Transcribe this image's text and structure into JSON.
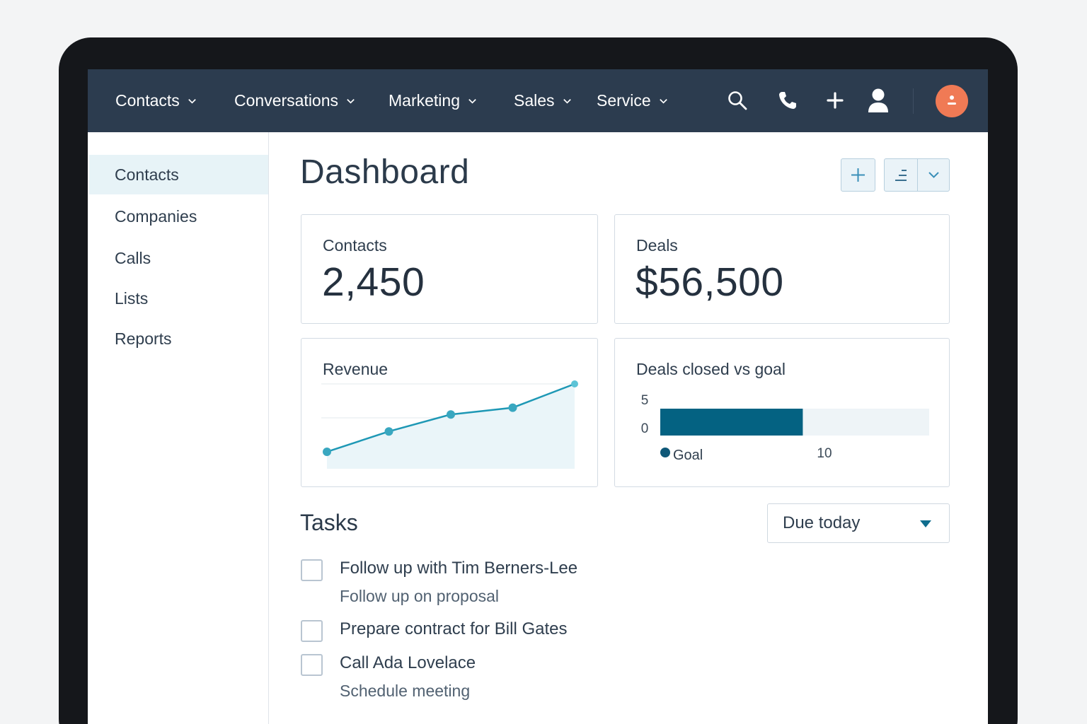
{
  "nav": {
    "items": [
      {
        "label": "Contacts"
      },
      {
        "label": "Conversations"
      },
      {
        "label": "Marketing"
      },
      {
        "label": "Sales"
      },
      {
        "label": "Service"
      }
    ],
    "icons": [
      "search-icon",
      "phone-icon",
      "plus-icon",
      "user-icon",
      "avatar"
    ]
  },
  "sidebar": {
    "items": [
      {
        "label": "Contacts",
        "active": true
      },
      {
        "label": "Companies"
      },
      {
        "label": "Calls"
      },
      {
        "label": "Lists"
      },
      {
        "label": "Reports"
      }
    ]
  },
  "main": {
    "title": "Dashboard",
    "stats": {
      "contacts": {
        "label": "Contacts",
        "value": "2,450"
      },
      "deals": {
        "label": "Deals",
        "value": "$56,500"
      }
    },
    "revenue": {
      "label": "Revenue"
    },
    "deals_goal": {
      "label": "Deals closed vs goal",
      "tick_top": "5",
      "tick_bottom": "0",
      "legend": "Goal",
      "axis_value": "10"
    },
    "tasks": {
      "title": "Tasks",
      "filter": "Due today",
      "items": [
        {
          "title": "Follow up with Tim Berners-Lee",
          "subtitle": "Follow up on proposal"
        },
        {
          "title": "Prepare contract for Bill Gates"
        },
        {
          "title": "Call Ada Lovelace",
          "subtitle": "Schedule meeting"
        }
      ]
    }
  },
  "colors": {
    "nav_bg": "#2c3c4f",
    "accent": "#1e98b5",
    "bar": "#046282",
    "avatar": "#f07a55"
  },
  "chart_data": [
    {
      "type": "line",
      "title": "Revenue",
      "x": [
        1,
        2,
        3,
        4,
        5
      ],
      "series": [
        {
          "values": [
            1.0,
            2.2,
            3.2,
            3.6,
            5.0
          ]
        }
      ],
      "ylim": [
        0,
        6
      ],
      "grid": true
    },
    {
      "type": "bar",
      "title": "Deals closed vs goal",
      "orientation": "horizontal",
      "values": [
        5.3
      ],
      "goal": 10,
      "xlim": [
        0,
        10
      ],
      "legend": "bottom"
    }
  ]
}
